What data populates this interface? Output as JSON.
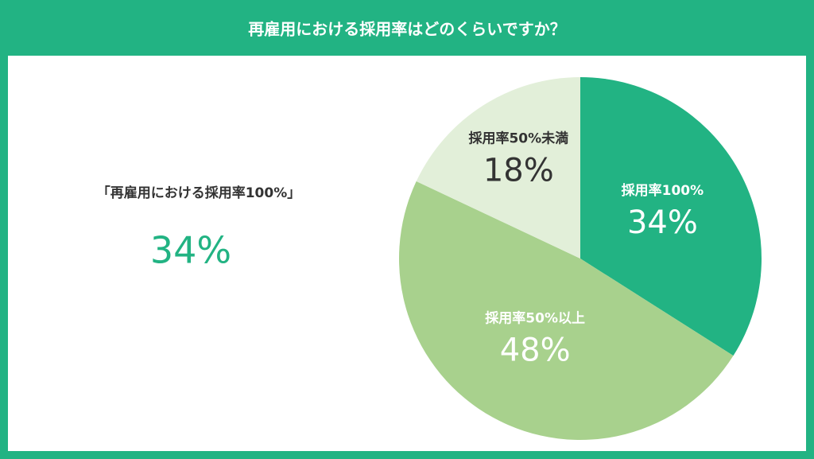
{
  "chart_data": {
    "type": "pie",
    "title": "再雇用における採用率はどのくらいですか？",
    "categories": [
      "採用率100%",
      "採用率50%以上",
      "採用率50%未満"
    ],
    "values": [
      34,
      48,
      18
    ],
    "value_labels": [
      "34%",
      "48%",
      "18%"
    ],
    "colors": [
      "#22b383",
      "#a8d18d",
      "#e2efd9"
    ],
    "label_colors": [
      "#ffffff",
      "#ffffff",
      "#333333"
    ]
  },
  "highlight": {
    "label": "「再雇用における採用率100%」",
    "value_label": "34%"
  }
}
